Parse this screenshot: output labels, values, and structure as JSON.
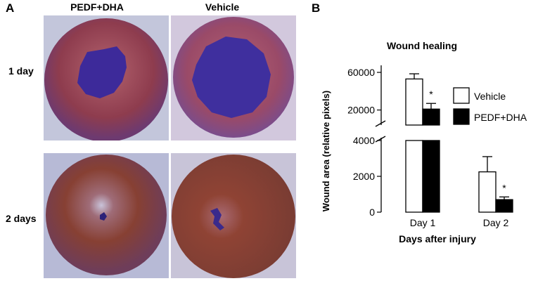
{
  "panel_a": {
    "letter": "A",
    "column_headers": [
      "PEDF+DHA",
      "Vehicle"
    ],
    "row_headers": [
      "1 day",
      "2 days"
    ],
    "colors": {
      "eye": "#8e3c4e",
      "eye_day2": "#874033",
      "wound": "#3d2a9a",
      "background": "#b9bdd6"
    }
  },
  "panel_b": {
    "letter": "B"
  },
  "chart_data": {
    "type": "bar",
    "title": "Wound healing",
    "xlabel": "Days after injury",
    "ylabel": "Wound area (relative pixels)",
    "categories": [
      "Day 1",
      "Day 2"
    ],
    "y_axis_broken": true,
    "y_ticks_lower": [
      "0",
      "2000",
      "4000"
    ],
    "y_ticks_upper": [
      "20000",
      "60000"
    ],
    "ylim_lower": [
      0,
      4000
    ],
    "ylim_upper": [
      4000,
      66000
    ],
    "series": [
      {
        "name": "Vehicle",
        "values": [
          53000,
          2250
        ],
        "errors": [
          5500,
          850
        ],
        "fill": "#ffffff"
      },
      {
        "name": "PEDF+DHA",
        "values": [
          21000,
          700
        ],
        "errors": [
          6000,
          150
        ],
        "fill": "#000000"
      }
    ],
    "significance": [
      "*",
      "*"
    ],
    "legend_position": "right",
    "grid": false
  }
}
